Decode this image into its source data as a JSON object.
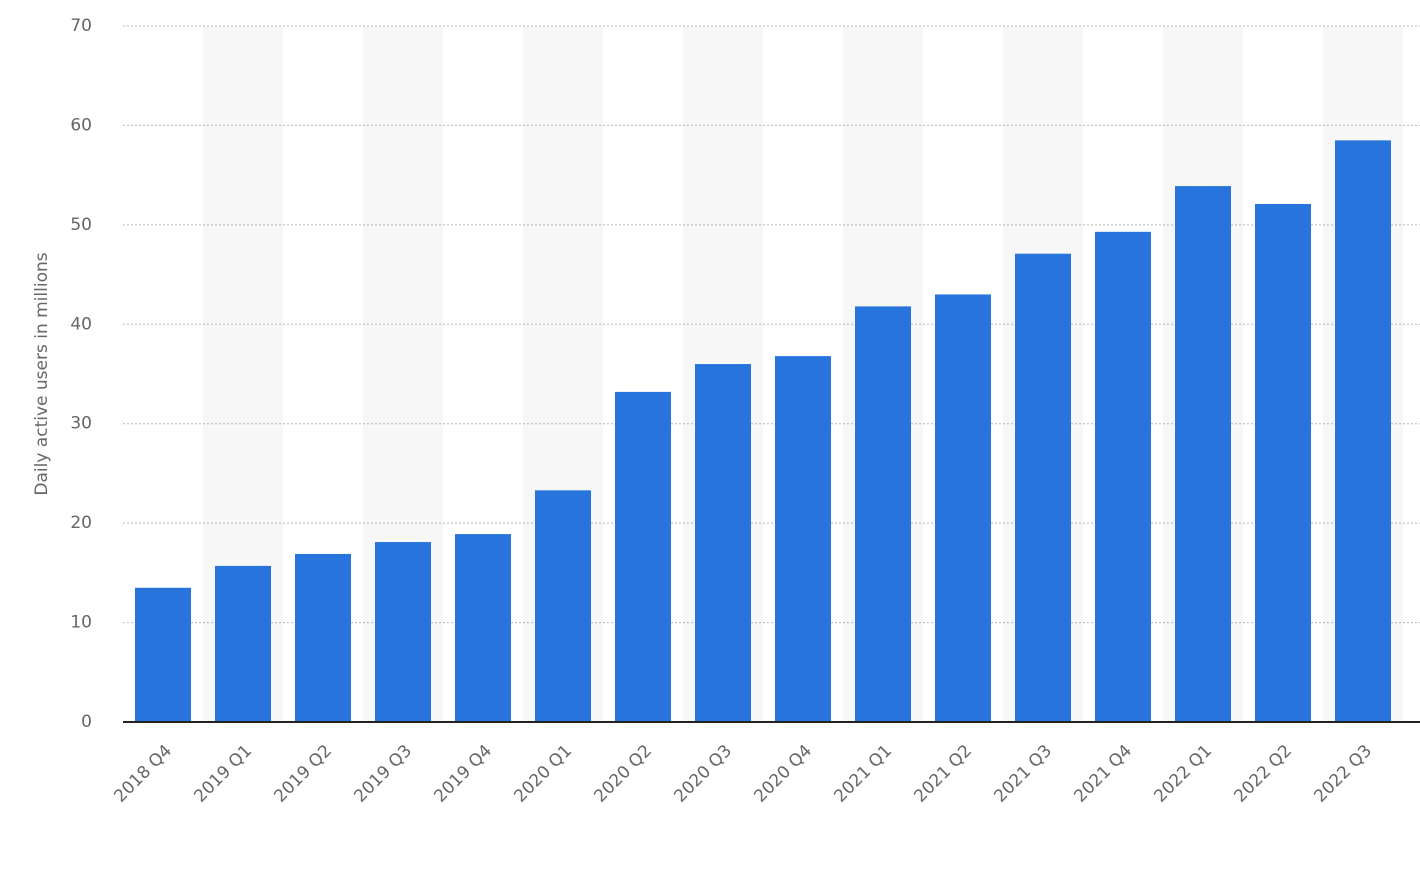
{
  "chart_data": {
    "type": "bar",
    "y_axis_label": "Daily active users in millions",
    "categories": [
      "2018 Q4",
      "2019 Q1",
      "2019 Q2",
      "2019 Q3",
      "2019 Q4",
      "2020 Q1",
      "2020 Q2",
      "2020 Q3",
      "2020 Q4",
      "2021 Q1",
      "2021 Q2",
      "2021 Q3",
      "2021 Q4",
      "2022 Q1",
      "2022 Q2",
      "2022 Q3"
    ],
    "values": [
      13.5,
      15.7,
      16.9,
      18.1,
      18.9,
      23.3,
      33.2,
      36.0,
      36.8,
      41.8,
      43.0,
      47.1,
      49.3,
      53.9,
      52.1,
      58.5
    ],
    "color": "#2775dc",
    "ylim": [
      0,
      70
    ],
    "yticks": [
      0,
      10,
      20,
      30,
      40,
      50,
      60,
      70
    ],
    "grid": true
  }
}
